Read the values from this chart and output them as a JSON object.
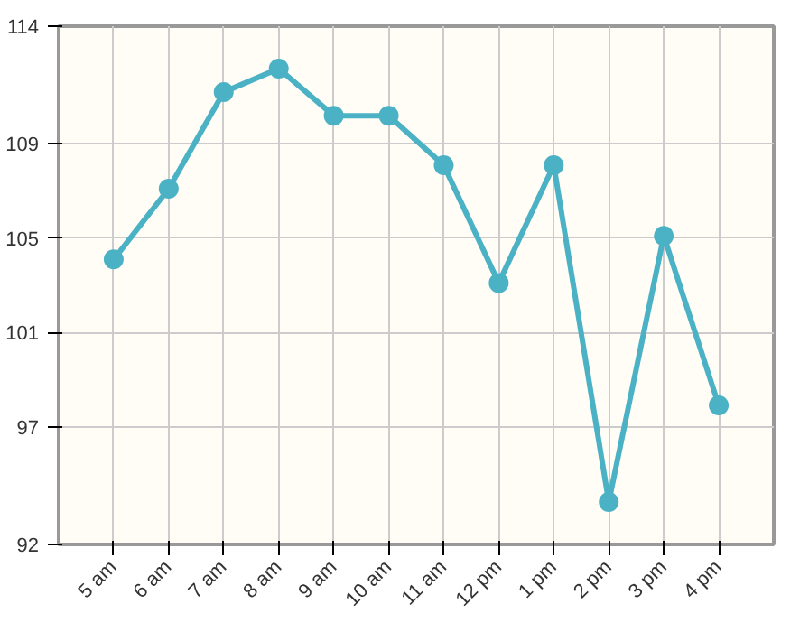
{
  "chart_data": {
    "type": "line",
    "categories": [
      "5 am",
      "6 am",
      "7 am",
      "8 am",
      "9 am",
      "10 am",
      "11 am",
      "12 pm",
      "1 pm",
      "2 pm",
      "3 pm",
      "4 pm"
    ],
    "series": [
      {
        "color": "#4bb2c5",
        "values": [
          104.1,
          107.1,
          111.2,
          112.2,
          110.2,
          110.2,
          108.1,
          103.1,
          108.1,
          93.8,
          105.1,
          97.9
        ]
      }
    ],
    "ylim": [
      92,
      114
    ],
    "yticks": [
      92,
      97,
      101,
      105,
      109,
      114
    ],
    "grid": true,
    "marker": "circle",
    "line_style": "solid"
  }
}
